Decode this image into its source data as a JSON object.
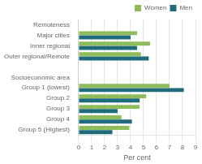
{
  "chart_data": {
    "type": "bar",
    "orientation": "horizontal",
    "categories": [
      "Remoteness",
      "Major cities",
      "Inner regional",
      "Outer regional/Remote",
      null,
      "Socioeconomic area",
      "Group 1 (lowest)",
      "Group 2",
      "Group 3",
      "Group 4",
      "Group 5 (Highest)"
    ],
    "series": [
      {
        "name": "Women",
        "color": "#8fbc5a",
        "values": [
          null,
          4.5,
          5.5,
          4.8,
          null,
          null,
          7.0,
          5.2,
          4.7,
          3.3,
          3.9
        ]
      },
      {
        "name": "Men",
        "color": "#1f6b7c",
        "values": [
          null,
          4.0,
          4.5,
          5.4,
          null,
          null,
          8.1,
          4.7,
          3.0,
          4.1,
          2.6
        ]
      }
    ],
    "xlabel": "Per cent",
    "xlim": [
      0,
      9
    ],
    "xticks": [
      0,
      1,
      2,
      3,
      4,
      5,
      6,
      7,
      8,
      9
    ],
    "grid": "x",
    "legend": "upper right"
  }
}
